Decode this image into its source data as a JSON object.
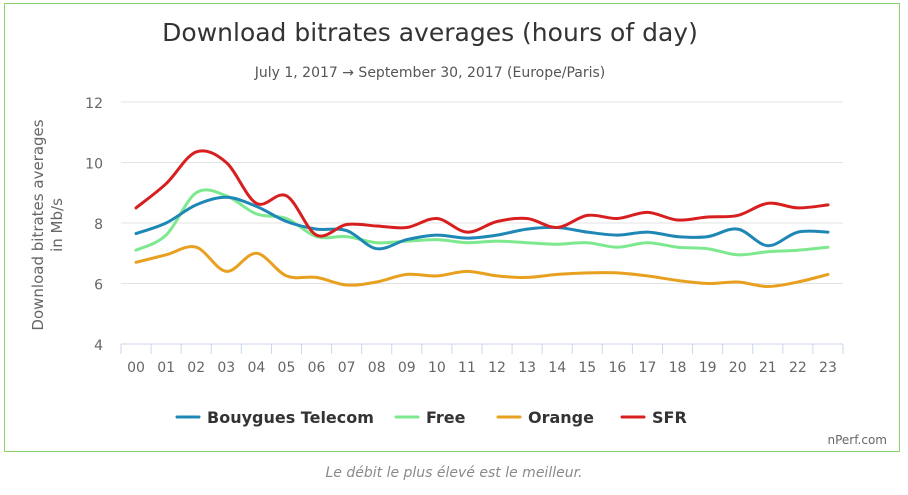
{
  "chart_data": {
    "type": "line",
    "title": "Download bitrates averages (hours of day)",
    "subtitle": "July 1, 2017 → September 30, 2017 (Europe/Paris)",
    "ylabel_lines": [
      "Download bitrates averages",
      "in Mb/s"
    ],
    "xlabel": "",
    "categories": [
      "00",
      "01",
      "02",
      "03",
      "04",
      "05",
      "06",
      "07",
      "08",
      "09",
      "10",
      "11",
      "12",
      "13",
      "14",
      "15",
      "16",
      "17",
      "18",
      "19",
      "20",
      "21",
      "22",
      "23"
    ],
    "ylim": [
      4,
      12
    ],
    "yticks": [
      4,
      6,
      8,
      10,
      12
    ],
    "grid": true,
    "legend_position": "bottom",
    "series": [
      {
        "name": "Bouygues Telecom",
        "color": "#1f87b5",
        "values": [
          7.65,
          8.0,
          8.6,
          8.85,
          8.55,
          8.05,
          7.8,
          7.75,
          7.15,
          7.45,
          7.6,
          7.5,
          7.6,
          7.8,
          7.85,
          7.7,
          7.6,
          7.7,
          7.55,
          7.55,
          7.8,
          7.25,
          7.7,
          7.7
        ]
      },
      {
        "name": "Free",
        "color": "#7ee88f",
        "values": [
          7.1,
          7.6,
          9.0,
          8.9,
          8.3,
          8.15,
          7.55,
          7.55,
          7.35,
          7.4,
          7.45,
          7.35,
          7.4,
          7.35,
          7.3,
          7.35,
          7.2,
          7.35,
          7.2,
          7.15,
          6.95,
          7.05,
          7.1,
          7.2
        ]
      },
      {
        "name": "Orange",
        "color": "#e8a020",
        "values": [
          6.7,
          6.95,
          7.2,
          6.4,
          7.0,
          6.25,
          6.2,
          5.95,
          6.05,
          6.3,
          6.25,
          6.4,
          6.25,
          6.2,
          6.3,
          6.35,
          6.35,
          6.25,
          6.1,
          6.0,
          6.05,
          5.9,
          6.05,
          6.3
        ]
      },
      {
        "name": "SFR",
        "color": "#d81f1f",
        "values": [
          8.5,
          9.3,
          10.35,
          10.0,
          8.65,
          8.9,
          7.6,
          7.95,
          7.9,
          7.85,
          8.15,
          7.7,
          8.05,
          8.15,
          7.85,
          8.25,
          8.15,
          8.35,
          8.1,
          8.2,
          8.25,
          8.65,
          8.5,
          8.6
        ]
      }
    ],
    "credit": "nPerf.com"
  },
  "caption": "Le débit le plus élevé est le meilleur."
}
